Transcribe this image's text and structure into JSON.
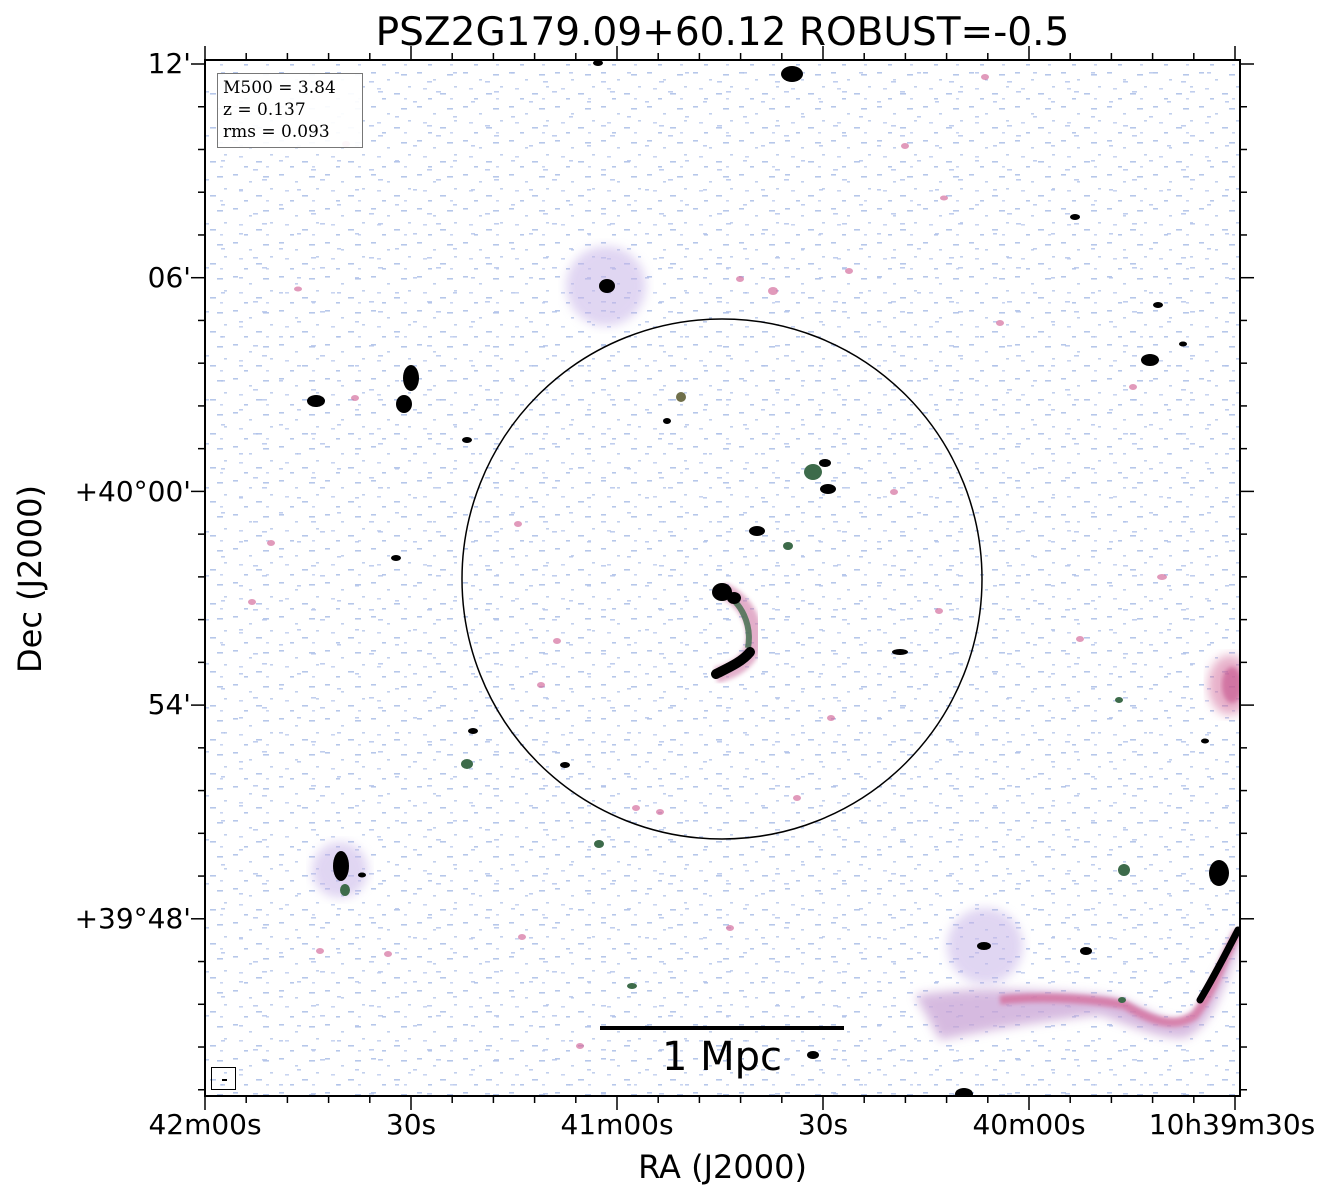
{
  "title": "PSZ2G179.09+60.12 ROBUST=-0.5",
  "axes": {
    "xlabel": "RA (J2000)",
    "ylabel": "Dec (J2000)",
    "x_ticks": [
      "42m00s",
      "30s",
      "41m00s",
      "30s",
      "40m00s",
      "10h39m30s"
    ],
    "y_ticks": [
      "12'",
      "06'",
      "+40°00'",
      "54'",
      "+39°48'"
    ]
  },
  "info": {
    "m500": "M500 = 3.84",
    "z": "z = 0.137",
    "rms": "rms = 0.093"
  },
  "scalebar": {
    "label": "1 Mpc"
  },
  "colors": {
    "background": "#ffffff",
    "noise_blue": "#a9bde6",
    "emission_purple": "#b49be0",
    "emission_pink": "#d46f9e",
    "source_core": "#000000",
    "source_green": "#3d6b4a"
  }
}
